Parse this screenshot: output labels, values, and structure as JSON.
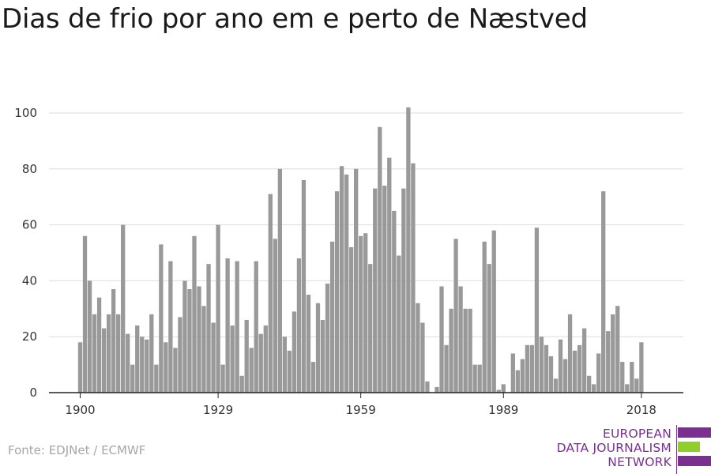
{
  "colors": {
    "bar": "#999999",
    "grid": "#dddddd",
    "axis": "#222222",
    "logo_purple": "#7a2f91",
    "logo_green": "#8fce2b"
  },
  "title": "Dias de frio por ano em e perto de Næstved",
  "source": "Fonte: EDJNet / ECMWF",
  "logo": {
    "line1": "EUROPEAN",
    "line2": "DATA JOURNALISM",
    "line3": "NETWORK"
  },
  "chart_data": {
    "type": "bar",
    "title": "Dias de frio por ano em e perto de Næstved",
    "xlabel": "",
    "ylabel": "",
    "ylim": [
      0,
      105
    ],
    "y_ticks": [
      0,
      20,
      40,
      60,
      80,
      100
    ],
    "x_ticks": [
      1900,
      1929,
      1959,
      1989,
      2018
    ],
    "grid": true,
    "x": [
      1900,
      1901,
      1902,
      1903,
      1904,
      1905,
      1906,
      1907,
      1908,
      1909,
      1910,
      1911,
      1912,
      1913,
      1914,
      1915,
      1916,
      1917,
      1918,
      1919,
      1920,
      1921,
      1922,
      1923,
      1924,
      1925,
      1926,
      1927,
      1928,
      1929,
      1930,
      1931,
      1932,
      1933,
      1934,
      1935,
      1936,
      1937,
      1938,
      1939,
      1940,
      1941,
      1942,
      1943,
      1944,
      1945,
      1946,
      1947,
      1948,
      1949,
      1950,
      1951,
      1952,
      1953,
      1954,
      1955,
      1956,
      1957,
      1958,
      1959,
      1960,
      1961,
      1962,
      1963,
      1964,
      1965,
      1966,
      1967,
      1968,
      1969,
      1970,
      1971,
      1972,
      1973,
      1974,
      1975,
      1976,
      1977,
      1978,
      1979,
      1980,
      1981,
      1982,
      1983,
      1984,
      1985,
      1986,
      1987,
      1988,
      1989,
      1990,
      1991,
      1992,
      1993,
      1994,
      1995,
      1996,
      1997,
      1998,
      1999,
      2000,
      2001,
      2002,
      2003,
      2004,
      2005,
      2006,
      2007,
      2008,
      2009,
      2010,
      2011,
      2012,
      2013,
      2014,
      2015,
      2016,
      2017,
      2018
    ],
    "values": [
      18,
      56,
      40,
      28,
      34,
      23,
      28,
      37,
      28,
      60,
      21,
      10,
      24,
      20,
      19,
      28,
      10,
      53,
      18,
      47,
      16,
      27,
      40,
      37,
      56,
      38,
      31,
      46,
      25,
      60,
      10,
      48,
      24,
      47,
      6,
      26,
      16,
      47,
      21,
      24,
      71,
      55,
      80,
      20,
      15,
      29,
      48,
      76,
      35,
      11,
      32,
      26,
      39,
      54,
      72,
      81,
      78,
      52,
      80,
      56,
      57,
      46,
      73,
      95,
      74,
      84,
      65,
      49,
      73,
      102,
      82,
      32,
      25,
      4,
      0,
      2,
      38,
      17,
      30,
      55,
      38,
      30,
      30,
      10,
      10,
      54,
      46,
      58,
      1,
      3,
      0,
      14,
      8,
      12,
      17,
      17,
      59,
      20,
      17,
      13,
      5,
      19,
      12,
      28,
      15,
      17,
      23,
      6,
      3,
      14,
      72,
      22,
      28,
      31,
      11,
      3,
      11,
      5,
      18
    ]
  }
}
